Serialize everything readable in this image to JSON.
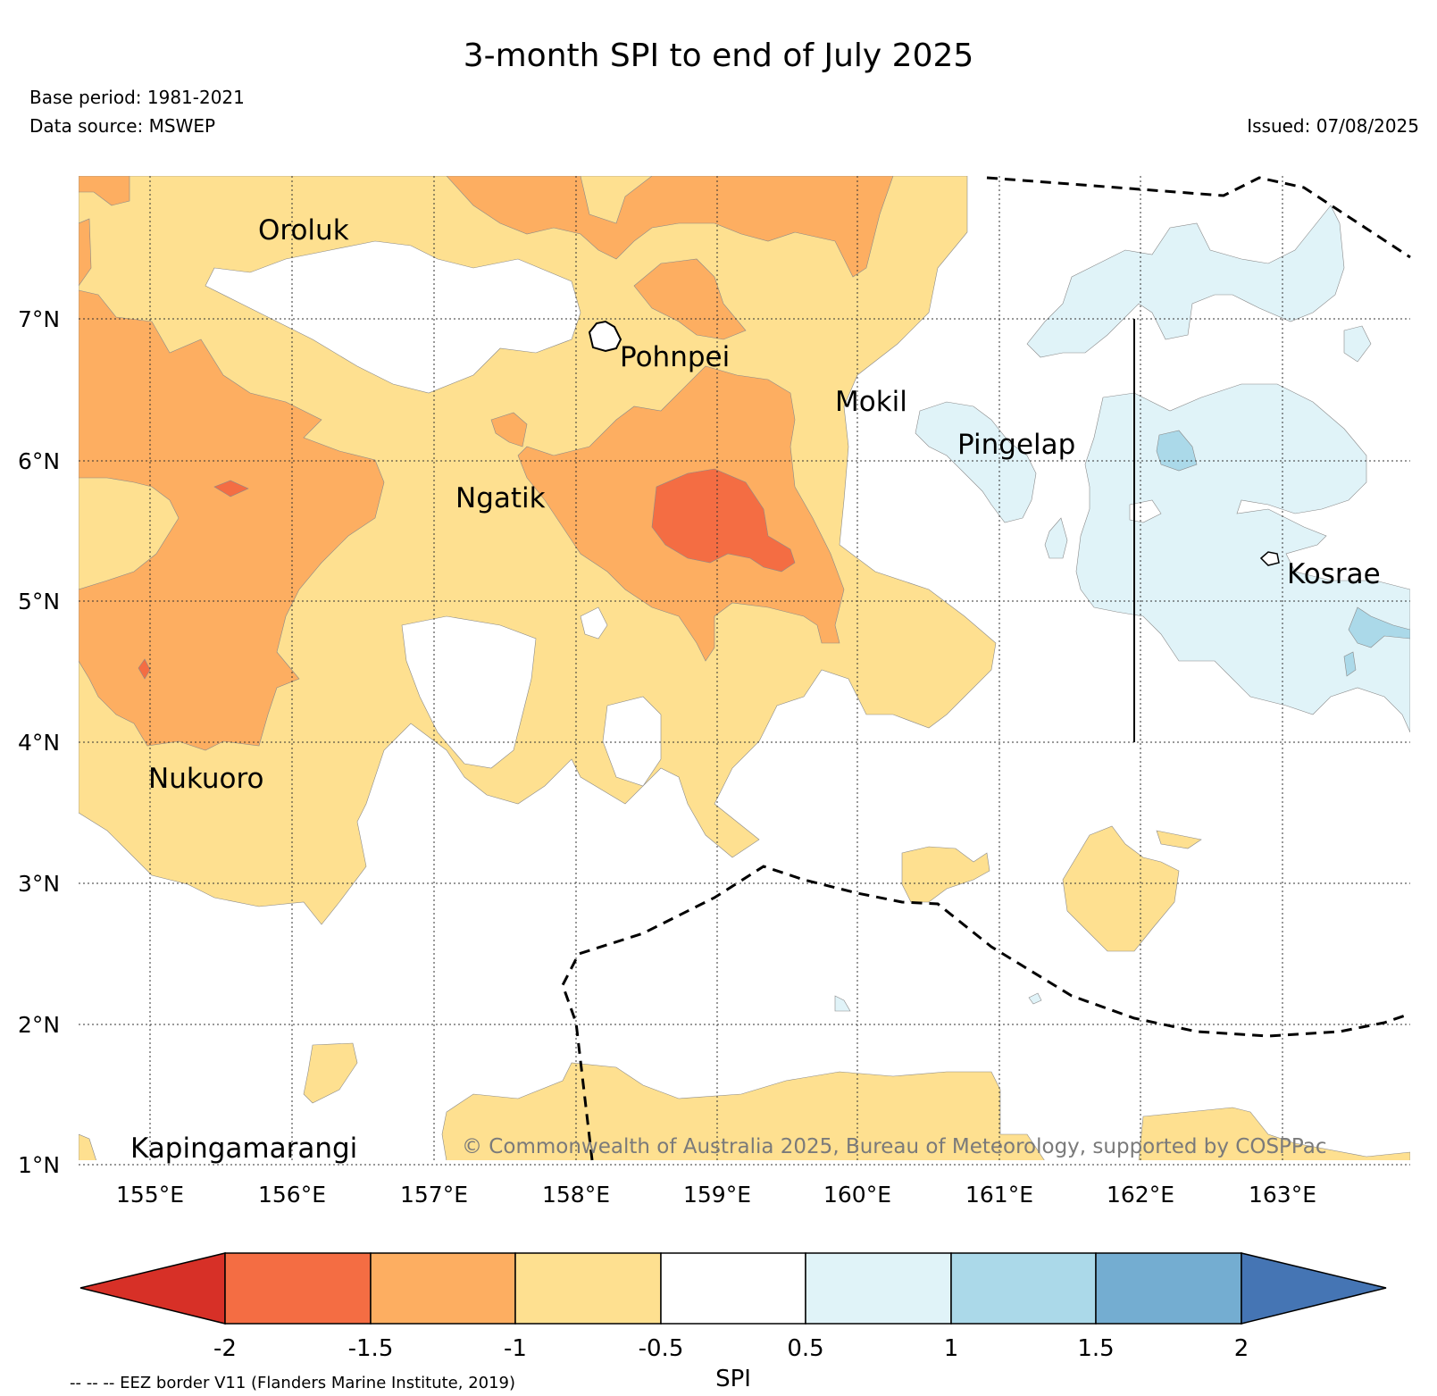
{
  "title": "3-month SPI to end of July 2025",
  "base_period": "Base period: 1981-2021",
  "data_source": "Data source: MSWEP",
  "issued": "Issued: 07/08/2025",
  "copyright": "© Commonwealth of Australia 2025, Bureau of Meteorology, supported by COSPPac",
  "eez_note": "-- -- -- EEZ border V11 (Flanders Marine Institute, 2019)",
  "map": {
    "lon_range": [
      154.5,
      164.0
    ],
    "lat_range": [
      1.0,
      8.0
    ],
    "lon_ticks": [
      {
        "value": 155,
        "label": "155°E"
      },
      {
        "value": 156,
        "label": "156°E"
      },
      {
        "value": 157,
        "label": "157°E"
      },
      {
        "value": 158,
        "label": "158°E"
      },
      {
        "value": 159,
        "label": "159°E"
      },
      {
        "value": 160,
        "label": "160°E"
      },
      {
        "value": 161,
        "label": "161°E"
      },
      {
        "value": 162,
        "label": "162°E"
      },
      {
        "value": 163,
        "label": "163°E"
      }
    ],
    "lat_ticks": [
      {
        "value": 1,
        "label": "1°N"
      },
      {
        "value": 2,
        "label": "2°N"
      },
      {
        "value": 3,
        "label": "3°N"
      },
      {
        "value": 4,
        "label": "4°N"
      },
      {
        "value": 5,
        "label": "5°N"
      },
      {
        "value": 6,
        "label": "6°N"
      },
      {
        "value": 7,
        "label": "7°N"
      }
    ],
    "places": [
      {
        "name": "Oroluk",
        "lon": 155.75,
        "lat": 7.7
      },
      {
        "name": "Pohnpei",
        "lon": 158.22,
        "lat": 6.9
      },
      {
        "name": "Mokil",
        "lon": 159.77,
        "lat": 6.7
      },
      {
        "name": "Pingelap",
        "lon": 160.7,
        "lat": 6.22
      },
      {
        "name": "Ngatik",
        "lon": 157.35,
        "lat": 5.8
      },
      {
        "name": "Kosrae",
        "lon": 162.98,
        "lat": 5.32
      },
      {
        "name": "Nukuoro",
        "lon": 154.95,
        "lat": 3.83
      },
      {
        "name": "Kapingamarangi",
        "lon": 154.85,
        "lat": 1.08
      }
    ],
    "grid": "on"
  },
  "colorbar": {
    "label": "SPI",
    "colors": [
      "#d73027",
      "#f46d43",
      "#fdae61",
      "#fee090",
      "#ffffff",
      "#e0f3f8",
      "#abd9e9",
      "#74add1",
      "#4575b4"
    ],
    "ticks": [
      "-2",
      "-1.5",
      "-1",
      "-0.5",
      "0.5",
      "1",
      "1.5",
      "2"
    ]
  }
}
